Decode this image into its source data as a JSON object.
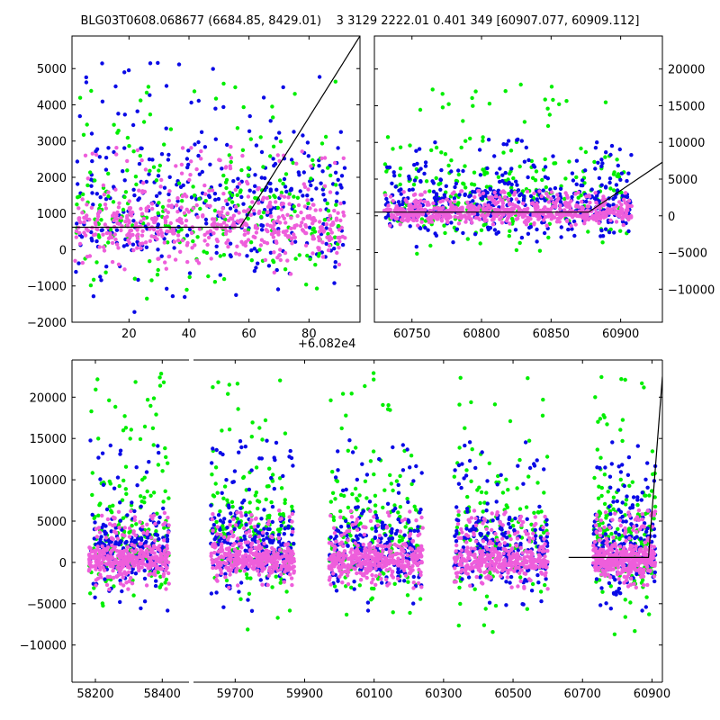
{
  "chart_data": [
    {
      "panel": "top-left",
      "type": "scatter",
      "xlim": [
        1,
        97
      ],
      "ylim": [
        -2000,
        5900
      ],
      "x_ticks": [
        20,
        40,
        60,
        80
      ],
      "x_tick_labels": [
        "20",
        "40",
        "60",
        "80"
      ],
      "x_offset_label": "+6.082e4",
      "y_ticks": [
        -2000,
        -1000,
        0,
        1000,
        2000,
        3000,
        4000,
        5000
      ],
      "y_tick_labels": [
        "−2000",
        "−1000",
        "0",
        "1000",
        "2000",
        "3000",
        "4000",
        "5000"
      ],
      "y_axis_side": "left",
      "model_line": {
        "x": [
          1,
          57,
          97
        ],
        "y": [
          620,
          620,
          5900
        ]
      },
      "series": [
        {
          "name": "blue",
          "color": "#0a0ae6",
          "count": 360,
          "x_range": [
            2,
            92
          ],
          "base": 1200,
          "spread": 1500,
          "tail": 4200
        },
        {
          "name": "green",
          "color": "#00ee00",
          "count": 240,
          "x_range": [
            2,
            92
          ],
          "base": 900,
          "spread": 1300,
          "tail": 3800
        },
        {
          "name": "pink",
          "color": "#ee5edb",
          "count": 520,
          "x_range": [
            2,
            92
          ],
          "base": 650,
          "spread": 550,
          "tail": 2200
        }
      ]
    },
    {
      "panel": "top-right",
      "type": "scatter",
      "xlim": [
        60723,
        60930
      ],
      "ylim": [
        -14500,
        24500
      ],
      "x_ticks": [
        60750,
        60800,
        60850,
        60900
      ],
      "x_tick_labels": [
        "60750",
        "60800",
        "60850",
        "60900"
      ],
      "y_ticks": [
        -10000,
        -5000,
        0,
        5000,
        10000,
        15000,
        20000
      ],
      "y_tick_labels": [
        "−10000",
        "−5000",
        "0",
        "5000",
        "10000",
        "15000",
        "20000"
      ],
      "y_axis_side": "right",
      "model_line": {
        "x": [
          60723,
          60877,
          60930
        ],
        "y": [
          500,
          500,
          7300
        ]
      },
      "series": [
        {
          "name": "green",
          "color": "#00ee00",
          "count": 260,
          "x_range": [
            60730,
            60908
          ],
          "base": 3000,
          "spread": 4000,
          "tail": 15000
        },
        {
          "name": "blue",
          "color": "#0a0ae6",
          "count": 420,
          "x_range": [
            60730,
            60908
          ],
          "base": 1500,
          "spread": 2800,
          "tail": 9000
        },
        {
          "name": "pink",
          "color": "#ee5edb",
          "count": 620,
          "x_range": [
            60730,
            60908
          ],
          "base": 400,
          "spread": 900,
          "tail": 3000
        }
      ]
    },
    {
      "panel": "bottom",
      "type": "scatter",
      "ylim": [
        -14500,
        24500
      ],
      "y_ticks": [
        -10000,
        -5000,
        0,
        5000,
        10000,
        15000,
        20000
      ],
      "y_tick_labels": [
        "−10000",
        "−5000",
        "0",
        "5000",
        "10000",
        "15000",
        "20000"
      ],
      "y_axis_side": "left",
      "segments": [
        {
          "xlim": [
            58130,
            58480
          ],
          "ticks": [
            58200,
            58400
          ],
          "tick_labels": [
            "58200",
            "58400"
          ],
          "data_range": [
            58180,
            58420
          ]
        },
        {
          "xlim": [
            59580,
            60930
          ],
          "ticks": [
            59700,
            59900,
            60100,
            60300,
            60500,
            60700,
            60900
          ],
          "tick_labels": [
            "59700",
            "59900",
            "60100",
            "60300",
            "60500",
            "60700",
            "60900"
          ],
          "data_ranges": [
            [
              59630,
              59870
            ],
            [
              59970,
              60240
            ],
            [
              60330,
              60600
            ],
            [
              60730,
              60910
            ]
          ]
        }
      ],
      "model_line": {
        "x": [
          60660,
          60890,
          60930
        ],
        "y": [
          600,
          600,
          22500
        ]
      },
      "series": [
        {
          "name": "green",
          "color": "#00ee00",
          "count": 900,
          "base": 3000,
          "spread": 5000,
          "tail": 20000
        },
        {
          "name": "blue",
          "color": "#0a0ae6",
          "count": 1100,
          "base": 1800,
          "spread": 3200,
          "tail": 13000
        },
        {
          "name": "pink",
          "color": "#ee5edb",
          "count": 1900,
          "base": 300,
          "spread": 1300,
          "tail": 6000
        }
      ]
    }
  ],
  "title": "BLG03T0608.068677 (6684.85, 8429.01)    3 3129 2222.01 0.401 349 [60907.077, 60909.112]",
  "offset_label": "+6.082e4"
}
